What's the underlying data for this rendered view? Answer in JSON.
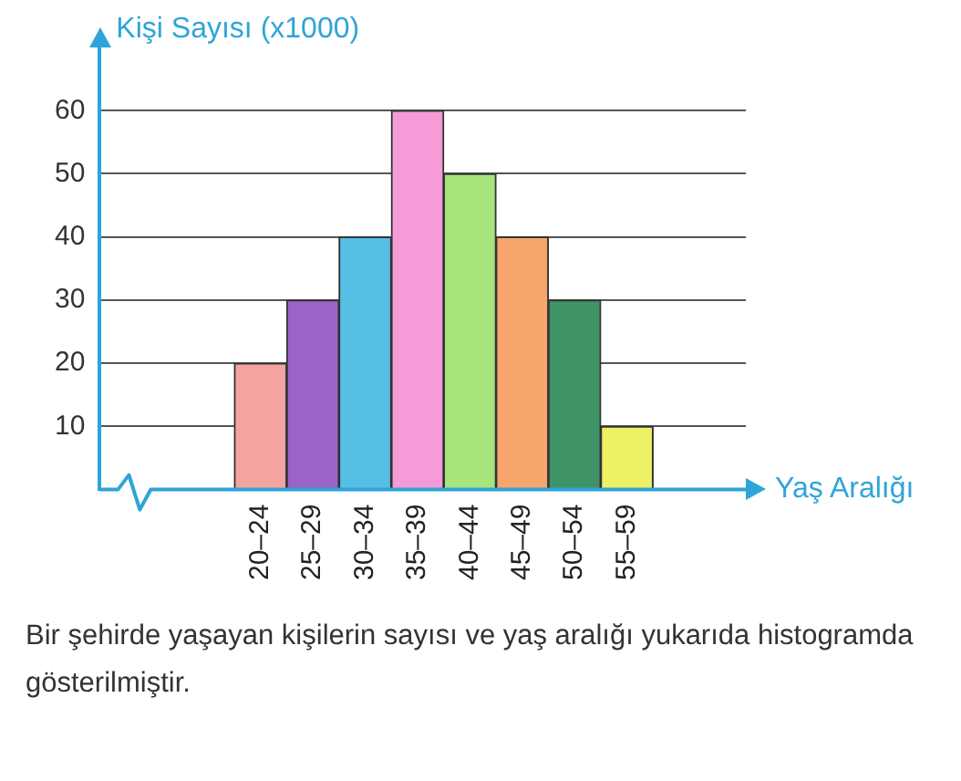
{
  "chart_data": {
    "type": "bar",
    "ylabel": "Kişi Sayısı (x1000)",
    "xlabel": "Yaş Aralığı",
    "categories": [
      "20–24",
      "25–29",
      "30–34",
      "35–39",
      "40–44",
      "45–49",
      "50–54",
      "55–59"
    ],
    "values": [
      20,
      30,
      40,
      60,
      50,
      40,
      30,
      10
    ],
    "colors": [
      "#f4a3a0",
      "#9b62c8",
      "#55bfe6",
      "#f59bd8",
      "#a6e47c",
      "#f7a56c",
      "#3f9467",
      "#eef066"
    ],
    "ylim": [
      0,
      70
    ],
    "yticks": [
      10,
      20,
      30,
      40,
      50,
      60
    ],
    "grid": "y",
    "legend": false,
    "annotations": [
      "Bir şehirde yaşayan kişilerin sayısı ve yaş aralığı yukarıda histogramda gösterilmiştir."
    ]
  }
}
